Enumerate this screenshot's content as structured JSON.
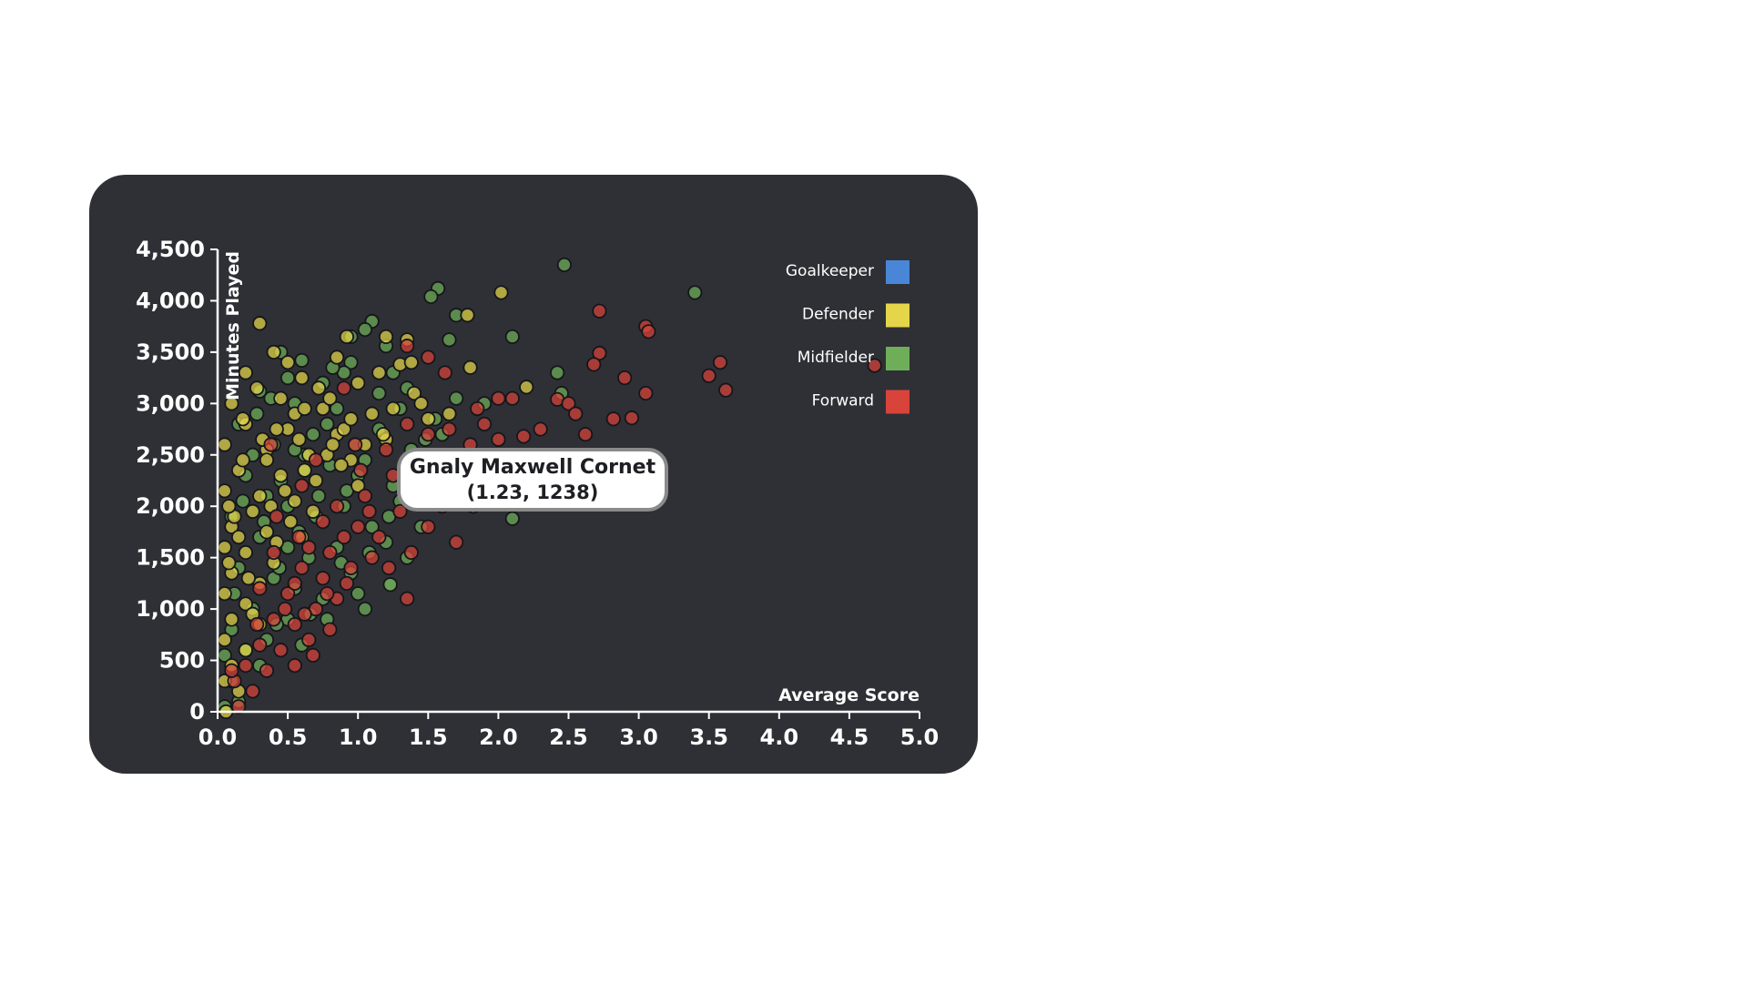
{
  "chart_data": {
    "type": "scatter",
    "xlabel": "Average Score",
    "ylabel": "Minutes Played",
    "xlim": [
      0,
      5
    ],
    "ylim": [
      0,
      4500
    ],
    "x_ticks": [
      "0.0",
      "0.5",
      "1.0",
      "1.5",
      "2.0",
      "2.5",
      "3.0",
      "3.5",
      "4.0",
      "4.5",
      "5.0"
    ],
    "y_ticks": [
      "0",
      "500",
      "1,000",
      "1,500",
      "2,000",
      "2,500",
      "3,000",
      "3,500",
      "4,000",
      "4,500"
    ],
    "grid": false,
    "legend": {
      "placement": "top-right",
      "entries": [
        {
          "label": "Goalkeeper",
          "color": "#4a86d8"
        },
        {
          "label": "Defender",
          "color": "#e5d54a"
        },
        {
          "label": "Midfielder",
          "color": "#6fae59"
        },
        {
          "label": "Forward",
          "color": "#d8433a"
        }
      ]
    },
    "series": [
      {
        "name": "Midfielder",
        "color": "#6fae59",
        "points": [
          [
            2.47,
            4350
          ],
          [
            3.4,
            4080
          ],
          [
            1.57,
            4120
          ],
          [
            1.52,
            4040
          ],
          [
            1.7,
            3860
          ],
          [
            1.1,
            3800
          ],
          [
            1.05,
            3720
          ],
          [
            0.95,
            3650
          ],
          [
            2.1,
            3650
          ],
          [
            1.65,
            3620
          ],
          [
            1.2,
            3560
          ],
          [
            0.45,
            3500
          ],
          [
            0.6,
            3420
          ],
          [
            0.95,
            3400
          ],
          [
            2.42,
            3300
          ],
          [
            2.45,
            3100
          ],
          [
            1.9,
            3000
          ],
          [
            1.25,
            3300
          ],
          [
            0.75,
            3200
          ],
          [
            1.35,
            3150
          ],
          [
            0.3,
            3120
          ],
          [
            0.55,
            3000
          ],
          [
            0.85,
            2950
          ],
          [
            1.6,
            2700
          ],
          [
            0.15,
            2800
          ],
          [
            0.4,
            2600
          ],
          [
            0.62,
            2500
          ],
          [
            0.8,
            2400
          ],
          [
            1.0,
            2300
          ],
          [
            1.25,
            2200
          ],
          [
            1.45,
            2150
          ],
          [
            0.2,
            2300
          ],
          [
            0.35,
            2100
          ],
          [
            0.5,
            2000
          ],
          [
            0.7,
            1900
          ],
          [
            0.9,
            2000
          ],
          [
            1.1,
            1800
          ],
          [
            1.45,
            1800
          ],
          [
            1.82,
            2000
          ],
          [
            2.1,
            1880
          ],
          [
            0.1,
            1900
          ],
          [
            0.3,
            1700
          ],
          [
            0.5,
            1600
          ],
          [
            0.65,
            1500
          ],
          [
            0.85,
            1600
          ],
          [
            1.2,
            1650
          ],
          [
            1.35,
            1500
          ],
          [
            0.15,
            1400
          ],
          [
            0.4,
            1300
          ],
          [
            0.55,
            1200
          ],
          [
            0.75,
            1100
          ],
          [
            1.0,
            1150
          ],
          [
            1.05,
            1000
          ],
          [
            0.25,
            1000
          ],
          [
            0.5,
            900
          ],
          [
            0.78,
            900
          ],
          [
            0.1,
            800
          ],
          [
            0.35,
            700
          ],
          [
            0.6,
            650
          ],
          [
            0.05,
            550
          ],
          [
            0.3,
            450
          ],
          [
            0.1,
            300
          ],
          [
            0.15,
            100
          ],
          [
            0.05,
            50
          ],
          [
            1.3,
            2950
          ],
          [
            1.55,
            2850
          ],
          [
            0.9,
            3300
          ],
          [
            1.15,
            3100
          ],
          [
            0.68,
            2700
          ],
          [
            0.98,
            2600
          ],
          [
            1.7,
            3050
          ],
          [
            0.25,
            2500
          ],
          [
            0.45,
            2250
          ],
          [
            0.72,
            2100
          ],
          [
            0.58,
            1750
          ],
          [
            0.95,
            1350
          ],
          [
            0.2,
            600
          ],
          [
            0.42,
            850
          ],
          [
            1.15,
            2750
          ],
          [
            0.82,
            3350
          ],
          [
            1.38,
            2550
          ],
          [
            0.12,
            1150
          ],
          [
            0.62,
            2350
          ],
          [
            1.05,
            2450
          ],
          [
            0.33,
            1850
          ],
          [
            0.88,
            1450
          ],
          [
            1.3,
            2050
          ],
          [
            1.6,
            2400
          ],
          [
            0.5,
            3250
          ],
          [
            0.28,
            2900
          ],
          [
            0.78,
            2800
          ],
          [
            1.08,
            1550
          ],
          [
            0.44,
            1400
          ],
          [
            0.18,
            2050
          ],
          [
            0.66,
            950
          ],
          [
            1.48,
            2650
          ],
          [
            0.92,
            2150
          ],
          [
            0.38,
            3050
          ],
          [
            1.22,
            1900
          ],
          [
            0.55,
            2550
          ]
        ]
      },
      {
        "name": "Defender",
        "color": "#e5d54a",
        "points": [
          [
            2.02,
            4080
          ],
          [
            1.78,
            3860
          ],
          [
            0.3,
            3780
          ],
          [
            0.92,
            3650
          ],
          [
            1.35,
            3620
          ],
          [
            1.2,
            3650
          ],
          [
            0.4,
            3500
          ],
          [
            0.85,
            3450
          ],
          [
            1.3,
            3380
          ],
          [
            1.8,
            3350
          ],
          [
            2.2,
            3160
          ],
          [
            0.2,
            3300
          ],
          [
            0.6,
            3250
          ],
          [
            1.0,
            3200
          ],
          [
            1.4,
            3100
          ],
          [
            0.1,
            3000
          ],
          [
            0.45,
            3050
          ],
          [
            0.75,
            2950
          ],
          [
            1.1,
            2900
          ],
          [
            1.5,
            2850
          ],
          [
            0.2,
            2800
          ],
          [
            0.5,
            2750
          ],
          [
            0.85,
            2700
          ],
          [
            1.2,
            2650
          ],
          [
            0.05,
            2600
          ],
          [
            0.35,
            2550
          ],
          [
            0.65,
            2500
          ],
          [
            0.95,
            2450
          ],
          [
            0.15,
            2350
          ],
          [
            0.45,
            2300
          ],
          [
            0.7,
            2250
          ],
          [
            1.0,
            2200
          ],
          [
            0.05,
            2150
          ],
          [
            0.3,
            2100
          ],
          [
            0.55,
            2050
          ],
          [
            0.25,
            1950
          ],
          [
            0.1,
            1800
          ],
          [
            0.35,
            1750
          ],
          [
            0.6,
            1700
          ],
          [
            0.05,
            1600
          ],
          [
            0.2,
            1550
          ],
          [
            0.4,
            1450
          ],
          [
            0.1,
            1350
          ],
          [
            0.3,
            1250
          ],
          [
            0.05,
            1150
          ],
          [
            0.2,
            1050
          ],
          [
            0.1,
            900
          ],
          [
            0.3,
            850
          ],
          [
            0.05,
            700
          ],
          [
            0.2,
            600
          ],
          [
            0.1,
            450
          ],
          [
            0.05,
            300
          ],
          [
            0.15,
            200
          ],
          [
            0.06,
            0
          ],
          [
            0.55,
            2900
          ],
          [
            0.8,
            3050
          ],
          [
            1.15,
            3300
          ],
          [
            0.32,
            2650
          ],
          [
            0.62,
            2350
          ],
          [
            0.9,
            2750
          ],
          [
            1.25,
            2950
          ],
          [
            0.18,
            2450
          ],
          [
            0.48,
            2150
          ],
          [
            0.78,
            2500
          ],
          [
            1.05,
            2600
          ],
          [
            0.12,
            1900
          ],
          [
            0.42,
            1650
          ],
          [
            0.68,
            1950
          ],
          [
            0.22,
            1300
          ],
          [
            0.38,
            2000
          ],
          [
            0.08,
            1450
          ],
          [
            0.58,
            2650
          ],
          [
            0.28,
            3150
          ],
          [
            1.45,
            3000
          ],
          [
            0.72,
            3150
          ],
          [
            0.95,
            2850
          ],
          [
            0.15,
            1700
          ],
          [
            0.35,
            2450
          ],
          [
            0.52,
            1850
          ],
          [
            0.25,
            950
          ],
          [
            0.62,
            2950
          ],
          [
            0.88,
            2400
          ],
          [
            1.18,
            2700
          ],
          [
            0.42,
            2750
          ],
          [
            0.08,
            2000
          ],
          [
            1.38,
            3400
          ],
          [
            0.5,
            3400
          ],
          [
            0.18,
            2850
          ],
          [
            0.82,
            2600
          ],
          [
            1.65,
            2900
          ]
        ]
      },
      {
        "name": "Forward",
        "color": "#d8433a",
        "points": [
          [
            2.72,
            3900
          ],
          [
            3.05,
            3750
          ],
          [
            3.07,
            3700
          ],
          [
            3.58,
            3400
          ],
          [
            3.5,
            3270
          ],
          [
            3.62,
            3130
          ],
          [
            4.68,
            3370
          ],
          [
            2.72,
            3490
          ],
          [
            2.68,
            3380
          ],
          [
            2.9,
            3250
          ],
          [
            3.05,
            3100
          ],
          [
            2.82,
            2850
          ],
          [
            2.95,
            2860
          ],
          [
            2.42,
            3040
          ],
          [
            2.5,
            3000
          ],
          [
            2.55,
            2900
          ],
          [
            2.3,
            2750
          ],
          [
            2.62,
            2700
          ],
          [
            2.18,
            2680
          ],
          [
            2.0,
            3050
          ],
          [
            2.1,
            3050
          ],
          [
            1.35,
            3560
          ],
          [
            1.5,
            3450
          ],
          [
            1.62,
            3300
          ],
          [
            1.85,
            2950
          ],
          [
            2.0,
            2650
          ],
          [
            1.35,
            2800
          ],
          [
            1.5,
            2700
          ],
          [
            1.65,
            2750
          ],
          [
            1.8,
            2600
          ],
          [
            1.9,
            2800
          ],
          [
            1.4,
            2450
          ],
          [
            1.55,
            2400
          ],
          [
            1.7,
            2300
          ],
          [
            1.25,
            2300
          ],
          [
            1.45,
            2150
          ],
          [
            1.6,
            2000
          ],
          [
            1.3,
            1950
          ],
          [
            1.5,
            1800
          ],
          [
            1.7,
            1650
          ],
          [
            1.35,
            1100
          ],
          [
            1.15,
            1700
          ],
          [
            1.0,
            1800
          ],
          [
            1.1,
            1500
          ],
          [
            0.9,
            1700
          ],
          [
            0.95,
            1400
          ],
          [
            0.8,
            1550
          ],
          [
            0.75,
            1300
          ],
          [
            0.85,
            1100
          ],
          [
            0.6,
            1400
          ],
          [
            0.7,
            1000
          ],
          [
            0.5,
            1150
          ],
          [
            0.55,
            850
          ],
          [
            0.65,
            700
          ],
          [
            0.4,
            900
          ],
          [
            0.45,
            600
          ],
          [
            0.55,
            450
          ],
          [
            0.3,
            650
          ],
          [
            0.35,
            400
          ],
          [
            0.2,
            450
          ],
          [
            0.25,
            200
          ],
          [
            0.12,
            300
          ],
          [
            0.15,
            50
          ],
          [
            0.1,
            400
          ],
          [
            0.38,
            2600
          ],
          [
            0.6,
            2200
          ],
          [
            0.85,
            2000
          ],
          [
            1.05,
            2100
          ],
          [
            1.2,
            2550
          ],
          [
            0.75,
            1850
          ],
          [
            0.65,
            1600
          ],
          [
            0.42,
            1900
          ],
          [
            0.55,
            1250
          ],
          [
            0.92,
            1250
          ],
          [
            1.22,
            1400
          ],
          [
            0.3,
            1200
          ],
          [
            0.48,
            1000
          ],
          [
            0.8,
            800
          ],
          [
            0.68,
            550
          ],
          [
            0.9,
            3150
          ],
          [
            0.7,
            2450
          ],
          [
            1.02,
            2350
          ],
          [
            0.58,
            1700
          ],
          [
            0.4,
            1550
          ],
          [
            0.28,
            850
          ],
          [
            1.38,
            1550
          ],
          [
            1.08,
            1950
          ],
          [
            0.98,
            2600
          ],
          [
            0.78,
            1150
          ],
          [
            0.62,
            950
          ]
        ]
      }
    ],
    "highlight": {
      "name": "Gnaly Maxwell Cornet",
      "x": 1.23,
      "y": 1238,
      "label_coords": "(1.23, 1238)"
    }
  }
}
